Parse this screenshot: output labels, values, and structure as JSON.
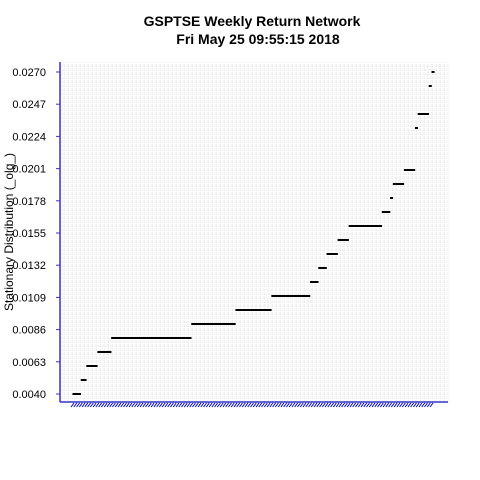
{
  "chart_data": {
    "type": "scatter",
    "title": "GSPTSE  Weekly Return Network",
    "subtitle": "Fri May 25 09:55:15 2018",
    "xlabel": "",
    "ylabel": "Stationary Distribution (_olg_)",
    "ylim": [
      0.0038,
      0.0272
    ],
    "yticks": [
      "0.0040",
      "0.0063",
      "0.0086",
      "0.0109",
      "0.0132",
      "0.0155",
      "0.0178",
      "0.0201",
      "0.0224",
      "0.0247",
      "0.0270"
    ],
    "grid": true,
    "colors": {
      "axis": "#3333cc",
      "points": "#000000",
      "grid": "#cccccc",
      "labels": "#0000cc"
    },
    "values": [
      0.004,
      0.004,
      0.004,
      0.005,
      0.005,
      0.006,
      0.006,
      0.006,
      0.006,
      0.007,
      0.007,
      0.007,
      0.007,
      0.007,
      0.008,
      0.008,
      0.008,
      0.008,
      0.008,
      0.008,
      0.008,
      0.008,
      0.008,
      0.008,
      0.008,
      0.008,
      0.008,
      0.008,
      0.008,
      0.008,
      0.008,
      0.008,
      0.008,
      0.008,
      0.008,
      0.008,
      0.008,
      0.008,
      0.008,
      0.008,
      0.008,
      0.008,
      0.008,
      0.009,
      0.009,
      0.009,
      0.009,
      0.009,
      0.009,
      0.009,
      0.009,
      0.009,
      0.009,
      0.009,
      0.009,
      0.009,
      0.009,
      0.009,
      0.009,
      0.01,
      0.01,
      0.01,
      0.01,
      0.01,
      0.01,
      0.01,
      0.01,
      0.01,
      0.01,
      0.01,
      0.01,
      0.01,
      0.011,
      0.011,
      0.011,
      0.011,
      0.011,
      0.011,
      0.011,
      0.011,
      0.011,
      0.011,
      0.011,
      0.011,
      0.011,
      0.011,
      0.012,
      0.012,
      0.012,
      0.013,
      0.013,
      0.013,
      0.014,
      0.014,
      0.014,
      0.014,
      0.015,
      0.015,
      0.015,
      0.015,
      0.016,
      0.016,
      0.016,
      0.016,
      0.016,
      0.016,
      0.016,
      0.016,
      0.016,
      0.016,
      0.016,
      0.016,
      0.017,
      0.017,
      0.017,
      0.018,
      0.019,
      0.019,
      0.019,
      0.019,
      0.02,
      0.02,
      0.02,
      0.02,
      0.023,
      0.024,
      0.024,
      0.024,
      0.024,
      0.026,
      0.027
    ]
  }
}
